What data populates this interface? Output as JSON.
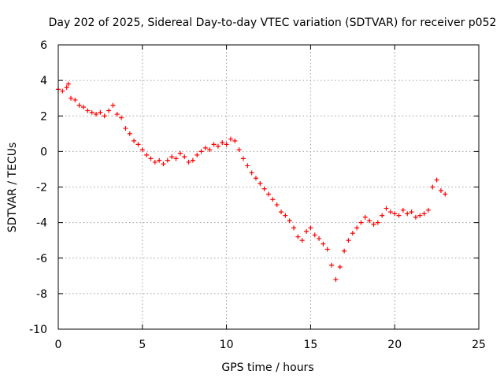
{
  "chart_data": {
    "type": "scatter",
    "title": "Day 202 of 2025, Sidereal Day-to-day VTEC variation (SDTVAR) for receiver p052",
    "xlabel": "GPS time / hours",
    "ylabel": "SDTVAR / TECUs",
    "xlim": [
      0,
      25
    ],
    "ylim": [
      -10,
      6
    ],
    "xticks": [
      0,
      5,
      10,
      15,
      20,
      25
    ],
    "yticks": [
      -10,
      -8,
      -6,
      -4,
      -2,
      0,
      2,
      4,
      6
    ],
    "xtick_labels": [
      "0",
      "5",
      "10",
      "15",
      "20",
      "25"
    ],
    "ytick_labels": [
      "-10",
      "-8",
      "-6",
      "-4",
      "-2",
      "0",
      "2",
      "4",
      "6"
    ],
    "grid": true,
    "marker": "+",
    "color": "#ff0000",
    "series": [
      {
        "name": "SDTVAR",
        "x": [
          0.0,
          0.25,
          0.5,
          0.6,
          0.75,
          1.0,
          1.25,
          1.5,
          1.75,
          2.0,
          2.25,
          2.5,
          2.75,
          3.0,
          3.25,
          3.5,
          3.75,
          4.0,
          4.25,
          4.5,
          4.75,
          5.0,
          5.25,
          5.5,
          5.75,
          6.0,
          6.25,
          6.5,
          6.75,
          7.0,
          7.25,
          7.5,
          7.75,
          8.0,
          8.25,
          8.5,
          8.75,
          9.0,
          9.25,
          9.5,
          9.75,
          10.0,
          10.25,
          10.5,
          10.75,
          11.0,
          11.25,
          11.5,
          11.75,
          12.0,
          12.25,
          12.5,
          12.75,
          13.0,
          13.25,
          13.5,
          13.75,
          14.0,
          14.25,
          14.5,
          14.75,
          15.0,
          15.25,
          15.5,
          15.75,
          16.0,
          16.25,
          16.5,
          16.75,
          17.0,
          17.25,
          17.5,
          17.75,
          18.0,
          18.25,
          18.5,
          18.75,
          19.0,
          19.25,
          19.5,
          19.75,
          20.0,
          20.25,
          20.5,
          20.75,
          21.0,
          21.25,
          21.5,
          21.75,
          22.0,
          22.25,
          22.5,
          22.75,
          23.0
        ],
        "y": [
          3.5,
          3.4,
          3.6,
          3.8,
          3.0,
          2.9,
          2.6,
          2.5,
          2.3,
          2.2,
          2.1,
          2.2,
          2.0,
          2.3,
          2.6,
          2.1,
          1.9,
          1.3,
          1.0,
          0.6,
          0.4,
          0.1,
          -0.2,
          -0.4,
          -0.6,
          -0.5,
          -0.7,
          -0.5,
          -0.3,
          -0.4,
          -0.1,
          -0.3,
          -0.6,
          -0.5,
          -0.2,
          0.0,
          0.2,
          0.1,
          0.4,
          0.3,
          0.5,
          0.4,
          0.7,
          0.6,
          0.1,
          -0.4,
          -0.8,
          -1.2,
          -1.5,
          -1.8,
          -2.1,
          -2.4,
          -2.7,
          -3.0,
          -3.4,
          -3.6,
          -3.9,
          -4.3,
          -4.8,
          -5.0,
          -4.5,
          -4.3,
          -4.7,
          -4.9,
          -5.2,
          -5.5,
          -6.4,
          -7.2,
          -6.5,
          -5.6,
          -5.0,
          -4.6,
          -4.3,
          -4.0,
          -3.7,
          -3.9,
          -4.1,
          -4.0,
          -3.6,
          -3.2,
          -3.4,
          -3.5,
          -3.6,
          -3.3,
          -3.5,
          -3.4,
          -3.7,
          -3.6,
          -3.5,
          -3.3,
          -2.0,
          -1.6,
          -2.2,
          -2.4
        ]
      }
    ]
  }
}
